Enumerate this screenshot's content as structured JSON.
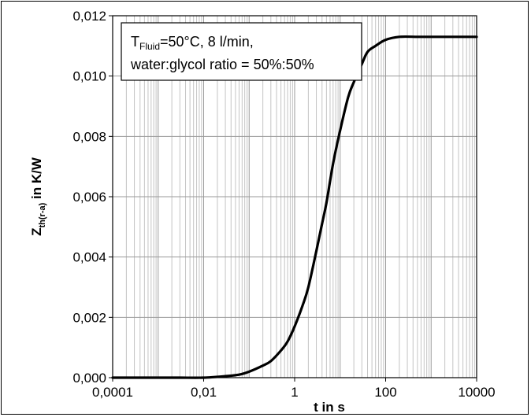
{
  "chart_data": {
    "type": "line",
    "xscale": "log",
    "xlim": [
      0.0001,
      10000
    ],
    "ylim": [
      0,
      0.012
    ],
    "xticks": [
      "0,0001",
      "0,01",
      "1",
      "100",
      "10000"
    ],
    "yticks": [
      "0,000",
      "0,002",
      "0,004",
      "0,006",
      "0,008",
      "0,010",
      "0,012"
    ],
    "xlabel": "t in s",
    "ylabel": {
      "main": "Z",
      "sub": "th(r-a)",
      "rest": " in K/W"
    },
    "grid": true,
    "annotation": {
      "line1_prefix": "T",
      "line1_sub": "Fluid",
      "line1_rest": "=50°C, 8 l/min,",
      "line2": "water:glycol ratio = 50%:50%"
    },
    "series": [
      {
        "color": "#000000",
        "x": [
          0.0001,
          0.001,
          0.003,
          0.01,
          0.03,
          0.06,
          0.1,
          0.2,
          0.3,
          0.5,
          0.7,
          1,
          1.5,
          2,
          3,
          4,
          5,
          7,
          10,
          15,
          20,
          30,
          40,
          60,
          100,
          200,
          500,
          1000,
          10000
        ],
        "y": [
          0,
          0,
          0,
          0,
          5e-05,
          0.0001,
          0.0002,
          0.0004,
          0.00055,
          0.0009,
          0.0012,
          0.0017,
          0.0024,
          0.003,
          0.0042,
          0.0051,
          0.0058,
          0.0071,
          0.0082,
          0.0093,
          0.0098,
          0.0104,
          0.0108,
          0.011,
          0.0112,
          0.0113,
          0.0113,
          0.0113,
          0.0113
        ]
      }
    ]
  }
}
